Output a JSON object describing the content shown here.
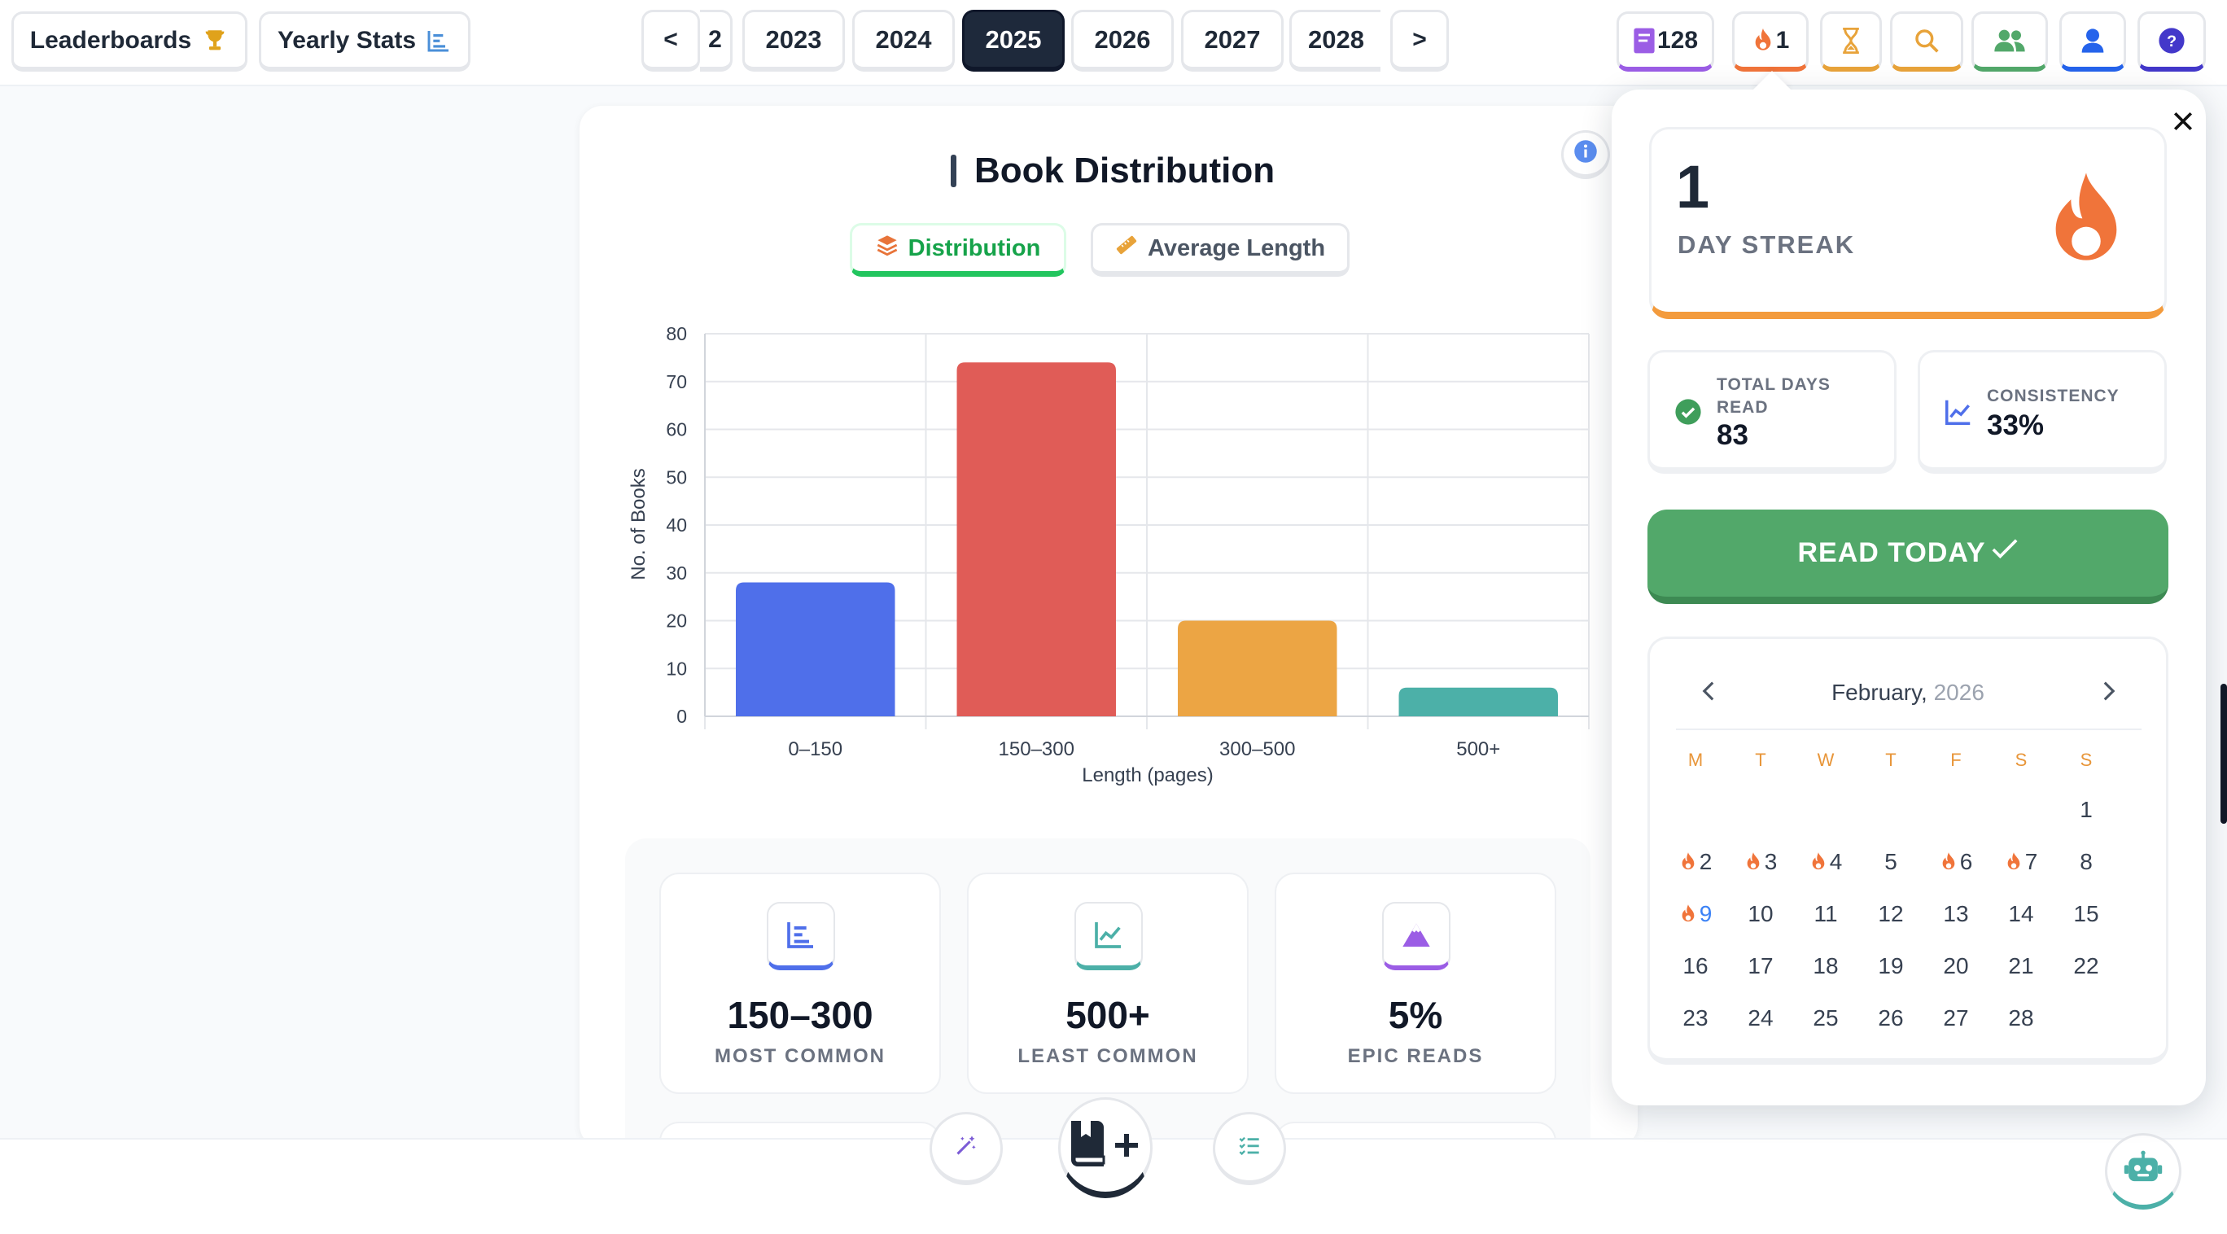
{
  "topbar": {
    "leaderboards_label": "Leaderboards",
    "yearly_stats_label": "Yearly Stats",
    "prev_label": "<",
    "next_label": ">",
    "partial_year_label": "2",
    "years": [
      "2023",
      "2024",
      "2025",
      "2026",
      "2027",
      "2028"
    ],
    "selected_year": "2025",
    "books_count": "128",
    "streak_count": "1"
  },
  "chart_panel": {
    "title": "Book Distribution",
    "tab_distribution": "Distribution",
    "tab_average_length": "Average Length"
  },
  "chart_data": {
    "type": "bar",
    "title": "Book Distribution",
    "categories": [
      "0–150",
      "150–300",
      "300–500",
      "500+"
    ],
    "values": [
      28,
      74,
      20,
      6
    ],
    "colors": [
      "#4f6fea",
      "#e05c57",
      "#eca544",
      "#4cb0a8"
    ],
    "xlabel": "Length (pages)",
    "ylabel": "No. of Books",
    "ylim": [
      0,
      80
    ],
    "yticks": [
      0,
      10,
      20,
      30,
      40,
      50,
      60,
      70,
      80
    ],
    "grid": true
  },
  "stats": [
    {
      "value": "150–300",
      "label": "MOST COMMON",
      "icon": "bar-chart-icon",
      "color": "#4f6fea"
    },
    {
      "value": "500+",
      "label": "LEAST COMMON",
      "icon": "line-chart-icon",
      "color": "#4cb0a8"
    },
    {
      "value": "5%",
      "label": "EPIC READS",
      "icon": "mountain-icon",
      "color": "#9b5de5"
    }
  ],
  "streak": {
    "days": "1",
    "label": "DAY STREAK",
    "total_days_label": "TOTAL DAYS READ",
    "total_days_value": "83",
    "consistency_label": "CONSISTENCY",
    "consistency_value": "33%",
    "read_today_label": "READ TODAY",
    "accent": "#f39b3d"
  },
  "calendar": {
    "month": "February,",
    "year": "2026",
    "weekdays": [
      "M",
      "T",
      "W",
      "T",
      "F",
      "S",
      "S"
    ],
    "days": [
      "1",
      "2",
      "3",
      "4",
      "5",
      "6",
      "7",
      "8",
      "9",
      "10",
      "11",
      "12",
      "13",
      "14",
      "15",
      "16",
      "17",
      "18",
      "19",
      "20",
      "21",
      "22",
      "23",
      "24",
      "25",
      "26",
      "27",
      "28"
    ],
    "streak_days": [
      2,
      3,
      4,
      6,
      7,
      9
    ],
    "today": 9
  }
}
